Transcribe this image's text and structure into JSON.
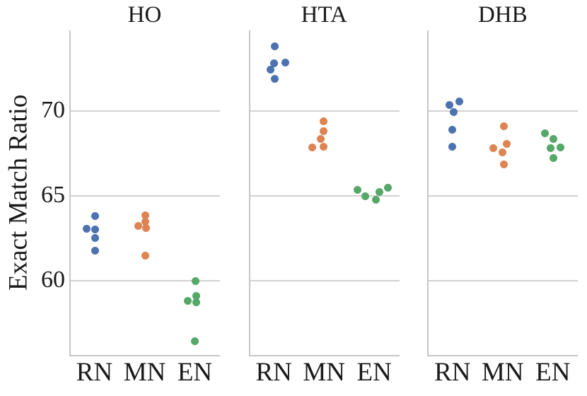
{
  "chart_data": {
    "type": "scatter",
    "subtype": "swarm-strip",
    "title": "",
    "xlabel": "",
    "ylabel": "Exact Match Ratio",
    "ylim": [
      55.6,
      74.75
    ],
    "yticks": [
      70,
      65,
      60
    ],
    "grid": "horizontal-only",
    "legend_position": "none",
    "categories": [
      "RN",
      "MN",
      "EN"
    ],
    "palette": {
      "RN": "#4C72B0",
      "MN": "#DD8452",
      "EN": "#55A868"
    },
    "panels": [
      {
        "title": "HO",
        "series": [
          {
            "name": "RN",
            "points": [
              {
                "v": 63.8,
                "dx": -1
              },
              {
                "v": 63.05,
                "dx": -13
              },
              {
                "v": 63.0,
                "dx": -0.5
              },
              {
                "v": 62.5,
                "dx": -1
              },
              {
                "v": 61.75,
                "dx": -1
              }
            ]
          },
          {
            "name": "MN",
            "points": [
              {
                "v": 63.85,
                "dx": 0
              },
              {
                "v": 63.45,
                "dx": 0
              },
              {
                "v": 63.2,
                "dx": -10.5
              },
              {
                "v": 63.1,
                "dx": 1
              },
              {
                "v": 61.45,
                "dx": 0
              }
            ]
          },
          {
            "name": "EN",
            "points": [
              {
                "v": 59.95,
                "dx": 0.5
              },
              {
                "v": 59.1,
                "dx": 1.5
              },
              {
                "v": 58.8,
                "dx": -10.5
              },
              {
                "v": 58.7,
                "dx": 1.5
              },
              {
                "v": 56.4,
                "dx": 0
              }
            ]
          }
        ]
      },
      {
        "title": "HTA",
        "series": [
          {
            "name": "RN",
            "points": [
              {
                "v": 73.8,
                "dx": 0
              },
              {
                "v": 72.85,
                "dx": 14.5
              },
              {
                "v": 72.8,
                "dx": -1
              },
              {
                "v": 72.45,
                "dx": -6.5
              },
              {
                "v": 71.9,
                "dx": -0.5
              }
            ]
          },
          {
            "name": "MN",
            "points": [
              {
                "v": 69.4,
                "dx": -1.5
              },
              {
                "v": 68.8,
                "dx": -1.5
              },
              {
                "v": 68.35,
                "dx": -6
              },
              {
                "v": 67.9,
                "dx": -1.5
              },
              {
                "v": 67.85,
                "dx": -17.5
              }
            ]
          },
          {
            "name": "EN",
            "points": [
              {
                "v": 65.45,
                "dx": 19
              },
              {
                "v": 65.35,
                "dx": -24
              },
              {
                "v": 65.2,
                "dx": 7
              },
              {
                "v": 64.95,
                "dx": -13
              },
              {
                "v": 64.75,
                "dx": 1.5
              }
            ]
          }
        ]
      },
      {
        "title": "DHB",
        "series": [
          {
            "name": "RN",
            "points": [
              {
                "v": 70.55,
                "dx": 8.5
              },
              {
                "v": 70.35,
                "dx": -5.5
              },
              {
                "v": 69.95,
                "dx": 0
              },
              {
                "v": 68.9,
                "dx": -1.5
              },
              {
                "v": 67.9,
                "dx": -1.5
              }
            ]
          },
          {
            "name": "MN",
            "points": [
              {
                "v": 69.1,
                "dx": 1
              },
              {
                "v": 68.05,
                "dx": 5
              },
              {
                "v": 67.8,
                "dx": -14
              },
              {
                "v": 67.55,
                "dx": -1.5
              },
              {
                "v": 66.85,
                "dx": 1
              }
            ]
          },
          {
            "name": "EN",
            "points": [
              {
                "v": 68.7,
                "dx": -12
              },
              {
                "v": 68.35,
                "dx": 0.5
              },
              {
                "v": 67.85,
                "dx": 10.5
              },
              {
                "v": 67.8,
                "dx": -4
              },
              {
                "v": 67.2,
                "dx": 0
              }
            ]
          }
        ]
      }
    ],
    "colors": {
      "grid": "#d2d2d2",
      "spine": "#c6c6c6",
      "text": "#1a1a1a"
    }
  }
}
